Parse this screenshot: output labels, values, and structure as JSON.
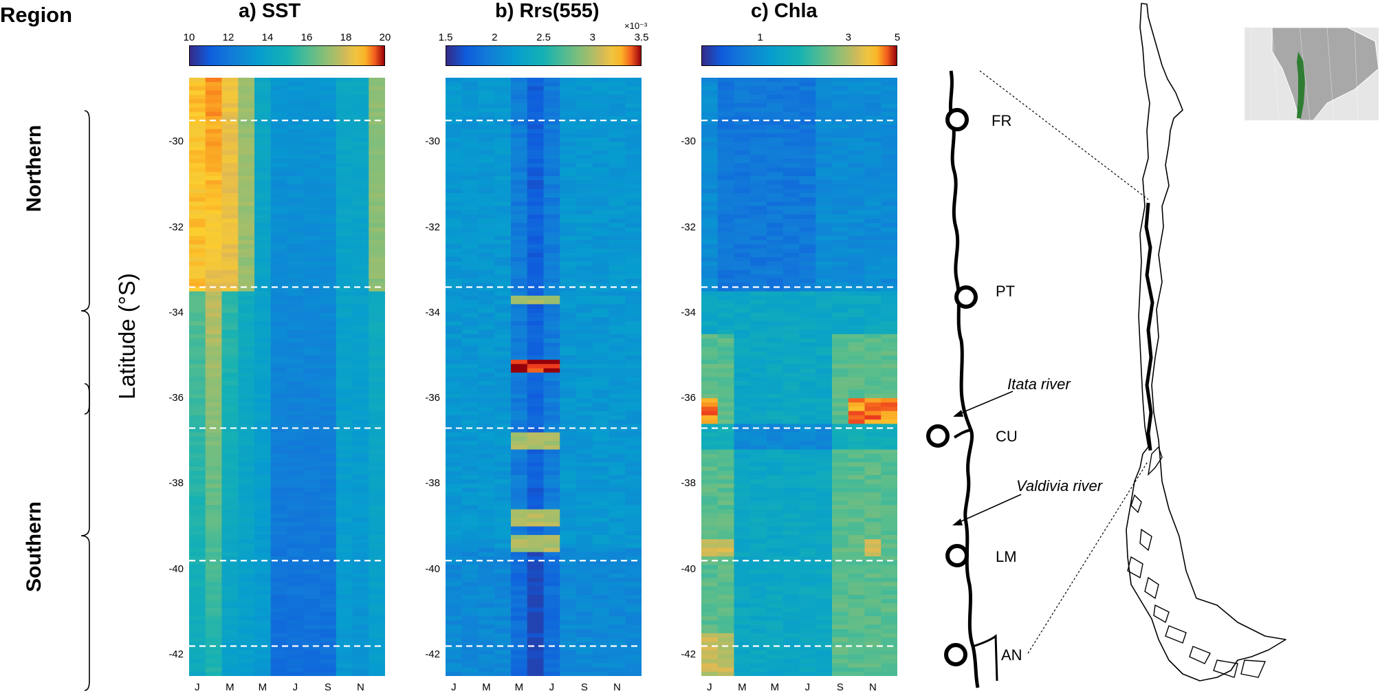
{
  "region_header": "Region",
  "regions": [
    "Northern",
    "Southern"
  ],
  "latitude_label": "Latitude (°S)",
  "y_ticks": [
    "-30",
    "-32",
    "-34",
    "-36",
    "-38",
    "-40",
    "-42"
  ],
  "x_ticks": [
    "J",
    "M",
    "M",
    "J",
    "S",
    "N"
  ],
  "colors": {
    "dashed_lines": "#ffffff",
    "coast": "#000000",
    "chile_highlight": "#2f7d32"
  },
  "chart_data": [
    {
      "type": "heatmap",
      "title_prefix": "a)",
      "title": "SST",
      "colorbar": {
        "ticks": [
          "10",
          "12",
          "14",
          "16",
          "18",
          "20"
        ],
        "range": [
          10,
          20
        ],
        "scale_note": ""
      },
      "colormap": "parula-jet",
      "xlim": [
        1,
        12
      ],
      "ylim": [
        -42.5,
        -28.5
      ],
      "boundaries_lat": [
        -29.5,
        -33.4,
        -36.7,
        -39.8,
        -41.8
      ]
    },
    {
      "type": "heatmap",
      "title_prefix": "b)",
      "title": "Rrs(555)",
      "colorbar": {
        "ticks": [
          "1.5",
          "2",
          "2.5",
          "3",
          "3.5"
        ],
        "range": [
          1.5,
          3.5
        ],
        "scale_note": "×10⁻³"
      },
      "colormap": "parula-jet",
      "xlim": [
        1,
        12
      ],
      "ylim": [
        -42.5,
        -28.5
      ],
      "boundaries_lat": [
        -29.5,
        -33.4,
        -36.7,
        -39.8,
        -41.8
      ]
    },
    {
      "type": "heatmap",
      "title_prefix": "c)",
      "title": "Chla",
      "colorbar": {
        "ticks": [
          "1",
          "3",
          "5"
        ],
        "range": [
          0.3,
          5
        ],
        "scale_note": ""
      },
      "colormap": "parula-jet",
      "xlim": [
        1,
        12
      ],
      "ylim": [
        -42.5,
        -28.5
      ],
      "boundaries_lat": [
        -29.5,
        -33.4,
        -36.7,
        -39.8,
        -41.8
      ]
    }
  ],
  "map": {
    "sites": [
      "FR",
      "PT",
      "CU",
      "LM",
      "AN"
    ],
    "rivers": [
      "Itata river",
      "Valdivia river"
    ]
  }
}
